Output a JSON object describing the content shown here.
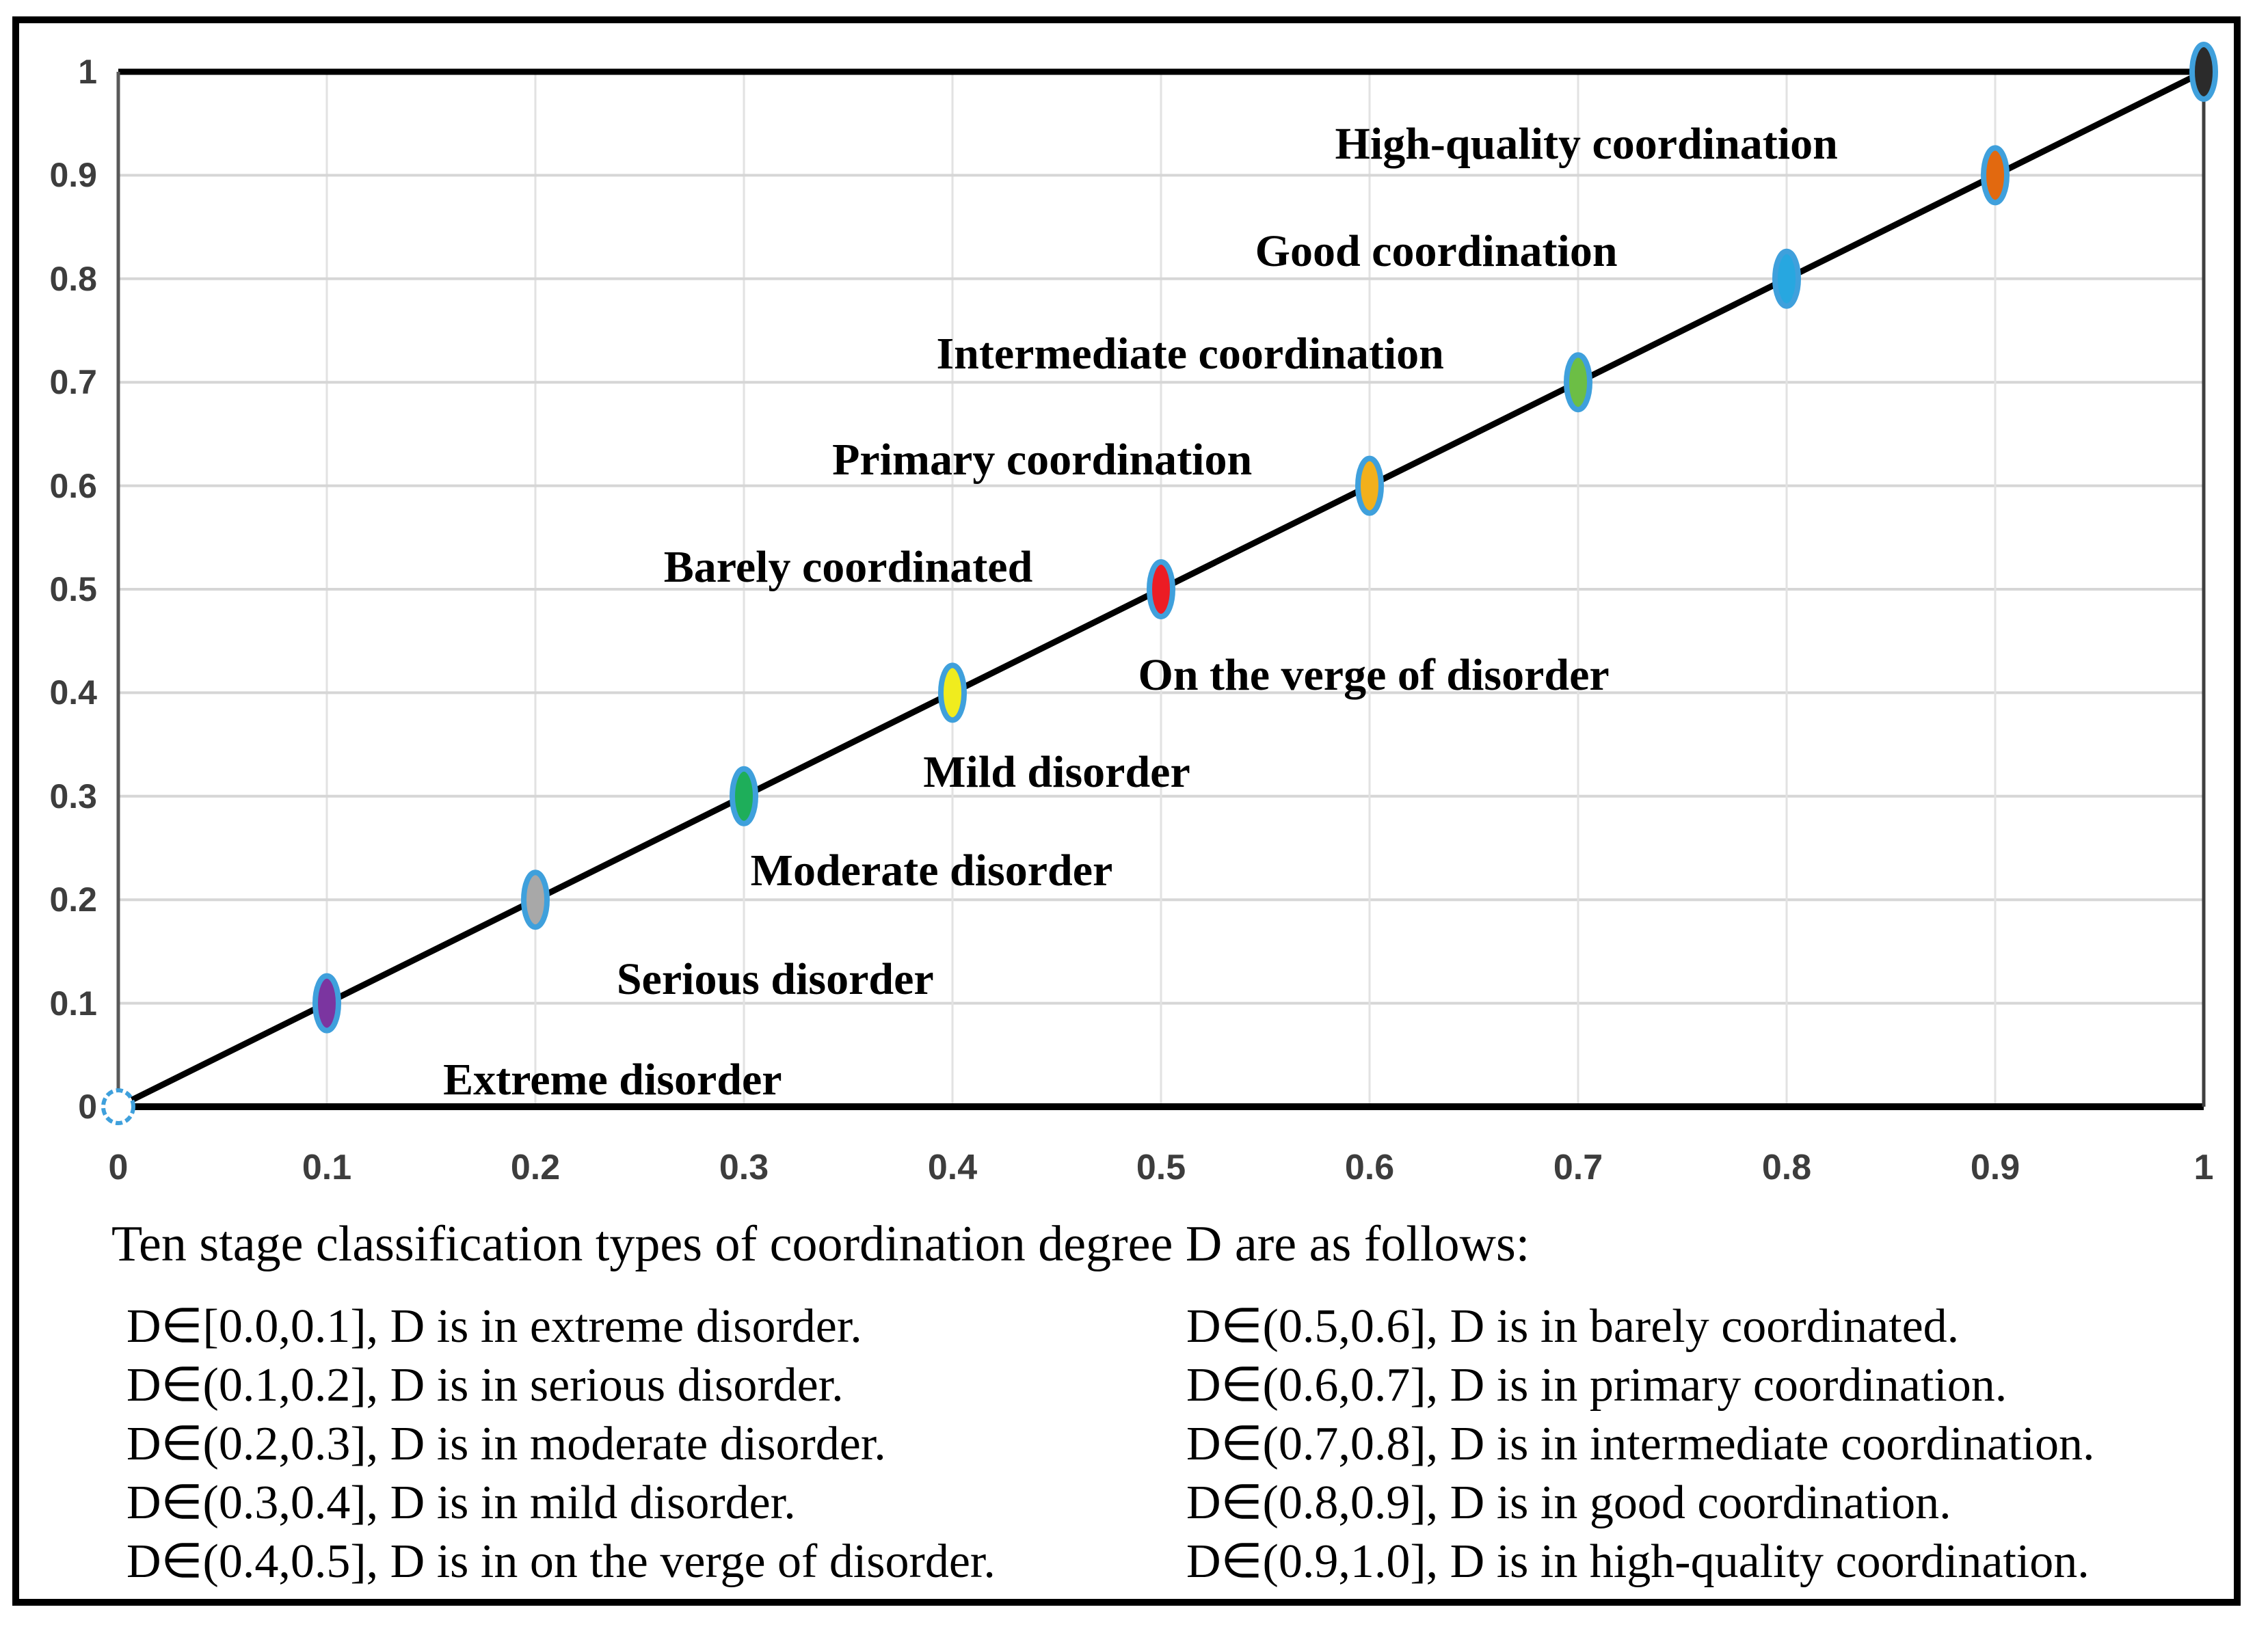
{
  "frame": {
    "border_color": "#000000",
    "background": "#FFFFFF"
  },
  "chart_data": {
    "type": "scatter",
    "title": "",
    "xlabel": "",
    "ylabel": "",
    "xlim": [
      0,
      1
    ],
    "ylim": [
      0,
      1
    ],
    "grid": true,
    "grid_color_vertical": "#E2E2E2",
    "grid_color_horizontal": "#D6D6D6",
    "axis_color": "#000000",
    "left_axis_color": "#595959",
    "right_border_color": "#3F3F3F",
    "line_color": "#000000",
    "marker_outline_color": "#3FA0DC",
    "xticks": [
      "0",
      "0.1",
      "0.2",
      "0.3",
      "0.4",
      "0.5",
      "0.6",
      "0.7",
      "0.8",
      "0.9",
      "1"
    ],
    "yticks": [
      "0",
      "0.1",
      "0.2",
      "0.3",
      "0.4",
      "0.5",
      "0.6",
      "0.7",
      "0.8",
      "0.9",
      "1"
    ],
    "x": [
      0,
      0.1,
      0.2,
      0.3,
      0.4,
      0.5,
      0.6,
      0.7,
      0.8,
      0.9,
      1
    ],
    "y": [
      0,
      0.1,
      0.2,
      0.3,
      0.4,
      0.5,
      0.6,
      0.7,
      0.8,
      0.9,
      1
    ],
    "points": [
      {
        "x": 0,
        "y": 0,
        "fill": "#FFFFFF",
        "shape": "circle",
        "name": "extreme-disorder-origin"
      },
      {
        "x": 0.1,
        "y": 0.1,
        "fill": "#7B35A0",
        "name": "serious-disorder"
      },
      {
        "x": 0.2,
        "y": 0.2,
        "fill": "#A8A8A8",
        "name": "moderate-disorder"
      },
      {
        "x": 0.3,
        "y": 0.3,
        "fill": "#1EAE5A",
        "name": "mild-disorder"
      },
      {
        "x": 0.4,
        "y": 0.4,
        "fill": "#F0EC1E",
        "name": "on-the-verge-of-disorder"
      },
      {
        "x": 0.5,
        "y": 0.5,
        "fill": "#EC1C24",
        "name": "barely-coordinated"
      },
      {
        "x": 0.6,
        "y": 0.6,
        "fill": "#F2B01C",
        "name": "primary-coordination"
      },
      {
        "x": 0.7,
        "y": 0.7,
        "fill": "#6CBE45",
        "name": "intermediate-coordination"
      },
      {
        "x": 0.8,
        "y": 0.8,
        "fill": "#27A7E0",
        "name": "good-coordination"
      },
      {
        "x": 0.9,
        "y": 0.9,
        "fill": "#E2690F",
        "name": "high-quality-coordination"
      },
      {
        "x": 1,
        "y": 1,
        "fill": "#2B2B2B",
        "name": "full-coordination"
      }
    ],
    "annotations": [
      {
        "text": "High-quality coordination",
        "x": 0.704,
        "y": 0.93
      },
      {
        "text": "Good coordination",
        "x": 0.632,
        "y": 0.826
      },
      {
        "text": "Intermediate coordination",
        "x": 0.514,
        "y": 0.727
      },
      {
        "text": "Primary coordination",
        "x": 0.443,
        "y": 0.625
      },
      {
        "text": "Barely coordinated",
        "x": 0.35,
        "y": 0.521
      },
      {
        "text": "On the verge of disorder",
        "x": 0.602,
        "y": 0.417
      },
      {
        "text": "Mild disorder",
        "x": 0.45,
        "y": 0.323
      },
      {
        "text": "Moderate disorder",
        "x": 0.39,
        "y": 0.228
      },
      {
        "text": "Serious disorder",
        "x": 0.315,
        "y": 0.123
      },
      {
        "text": "Extreme disorder",
        "x": 0.237,
        "y": 0.026
      }
    ]
  },
  "caption": {
    "heading": "Ten stage classification types of coordination degree D are as follows:",
    "left_column": [
      "D∈[0.0,0.1], D is in extreme disorder.",
      "D∈(0.1,0.2], D is in serious disorder.",
      "D∈(0.2,0.3], D is in moderate disorder.",
      "D∈(0.3,0.4], D is in mild disorder.",
      "D∈(0.4,0.5], D is in on the verge of disorder."
    ],
    "right_column": [
      "D∈(0.5,0.6], D is in barely coordinated.",
      "D∈(0.6,0.7], D is in primary coordination.",
      "D∈(0.7,0.8], D is in intermediate coordination.",
      "D∈(0.8,0.9], D is in good coordination.",
      "D∈(0.9,1.0], D is in high-quality coordination."
    ]
  }
}
